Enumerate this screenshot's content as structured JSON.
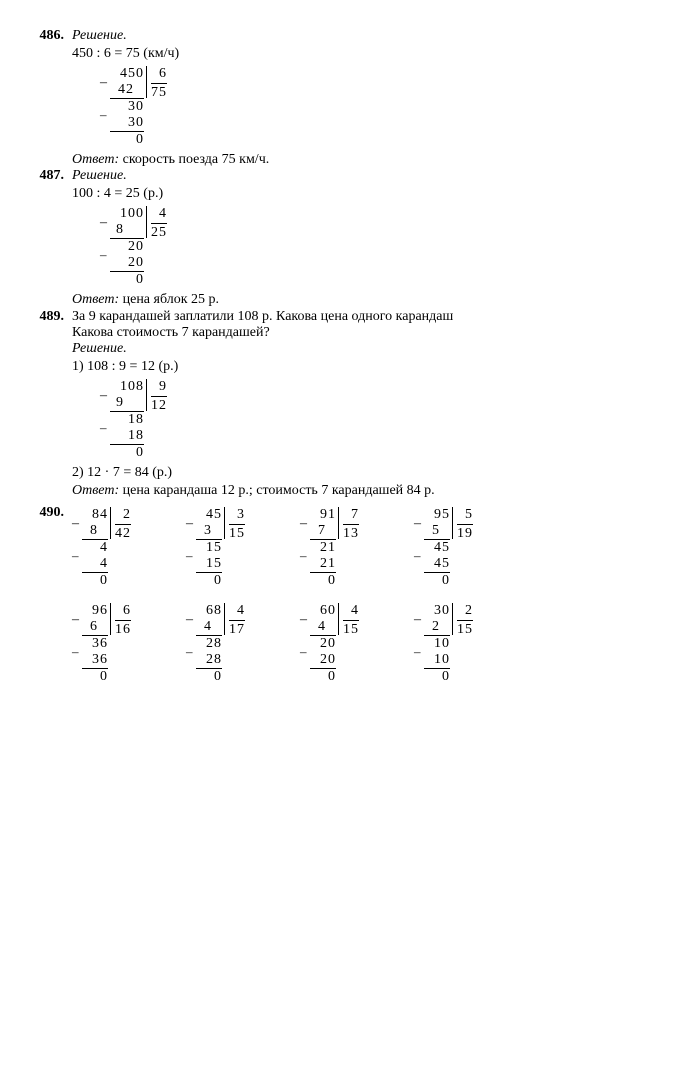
{
  "p486": {
    "num": "486.",
    "solution_label": "Решение.",
    "eq": "450 : 6 = 75 (км/ч)",
    "ld": {
      "dividend": "450",
      "divisor": "6",
      "quotient": "75",
      "s1": "42",
      "r1": "30",
      "s2": "30",
      "r2": "0"
    },
    "answer_label": "Ответ:",
    "answer": " скорость поезда 75 км/ч."
  },
  "p487": {
    "num": "487.",
    "solution_label": "Решение.",
    "eq": "100 : 4 = 25 (р.)",
    "ld": {
      "dividend": "100",
      "divisor": "4",
      "quotient": "25",
      "s1": "8",
      "r1": "20",
      "s2": "20",
      "r2": "0"
    },
    "answer_label": "Ответ:",
    "answer": " цена яблок 25 р."
  },
  "p489": {
    "num": "489.",
    "task_l1": "За 9 карандашей заплатили 108 р. Какова цена одного карандаш",
    "task_l2": "Какова стоимость 7 карандашей?",
    "solution_label": "Решение.",
    "eq1": "1) 108 : 9 = 12 (р.)",
    "ld": {
      "dividend": "108",
      "divisor": "9",
      "quotient": "12",
      "s1": "9",
      "r1": "18",
      "s2": "18",
      "r2": "0"
    },
    "eq2": "2) 12 · 7 = 84 (р.)",
    "answer_label": "Ответ:",
    "answer": " цена карандаша 12 р.; стоимость 7 карандашей 84 р."
  },
  "p490": {
    "num": "490.",
    "row1": [
      {
        "dividend": "84",
        "divisor": "2",
        "quotient": "42",
        "s1": "8",
        "r1": "4",
        "s2": "4",
        "r2": "0"
      },
      {
        "dividend": "45",
        "divisor": "3",
        "quotient": "15",
        "s1": "3",
        "r1": "15",
        "s2": "15",
        "r2": "0"
      },
      {
        "dividend": "91",
        "divisor": "7",
        "quotient": "13",
        "s1": "7",
        "r1": "21",
        "s2": "21",
        "r2": "0"
      },
      {
        "dividend": "95",
        "divisor": "5",
        "quotient": "19",
        "s1": "5",
        "r1": "45",
        "s2": "45",
        "r2": "0"
      }
    ],
    "row2": [
      {
        "dividend": "96",
        "divisor": "6",
        "quotient": "16",
        "s1": "6",
        "r1": "36",
        "s2": "36",
        "r2": "0"
      },
      {
        "dividend": "68",
        "divisor": "4",
        "quotient": "17",
        "s1": "4",
        "r1": "28",
        "s2": "28",
        "r2": "0"
      },
      {
        "dividend": "60",
        "divisor": "4",
        "quotient": "15",
        "s1": "4",
        "r1": "20",
        "s2": "20",
        "r2": "0"
      },
      {
        "dividend": "30",
        "divisor": "2",
        "quotient": "15",
        "s1": "2",
        "r1": "10",
        "s2": "10",
        "r2": "0"
      }
    ]
  }
}
